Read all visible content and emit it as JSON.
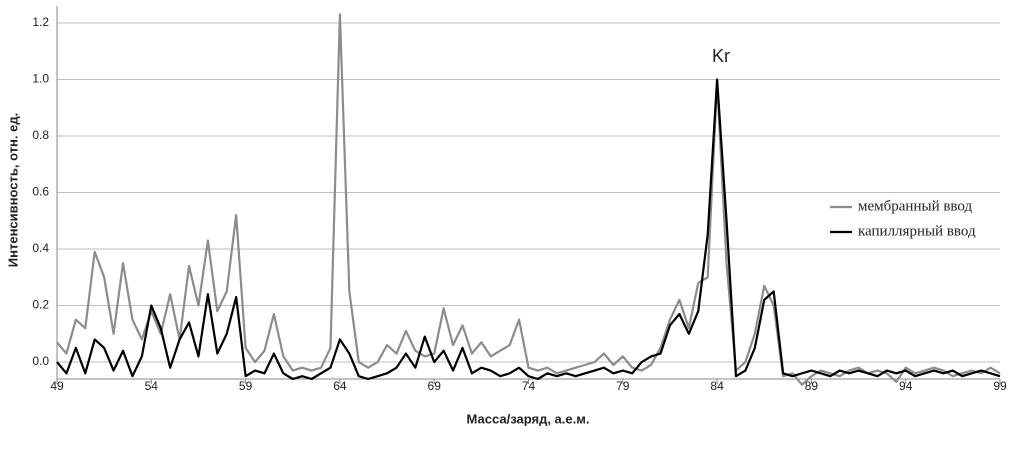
{
  "chart_data": {
    "type": "line",
    "xlabel": "Масса/заряд, а.е.м.",
    "ylabel": "Интенсивность, отн. ед.",
    "annotation": "Kr",
    "x": [
      49,
      49.5,
      50,
      50.5,
      51,
      51.5,
      52,
      52.5,
      53,
      53.5,
      54,
      54.5,
      55,
      55.5,
      56,
      56.5,
      57,
      57.5,
      58,
      58.5,
      59,
      59.5,
      60,
      60.5,
      61,
      61.5,
      62,
      62.5,
      63,
      63.5,
      64,
      64.5,
      65,
      65.5,
      66,
      66.5,
      67,
      67.5,
      68,
      68.5,
      69,
      69.5,
      70,
      70.5,
      71,
      71.5,
      72,
      72.5,
      73,
      73.5,
      74,
      74.5,
      75,
      75.5,
      76,
      76.5,
      77,
      77.5,
      78,
      78.5,
      79,
      79.5,
      80,
      80.5,
      81,
      81.5,
      82,
      82.5,
      83,
      83.5,
      84,
      84.5,
      85,
      85.5,
      86,
      86.5,
      87,
      87.5,
      88,
      88.5,
      89,
      89.5,
      90,
      90.5,
      91,
      91.5,
      92,
      92.5,
      93,
      93.5,
      94,
      94.5,
      95,
      95.5,
      96,
      96.5,
      97,
      97.5,
      98,
      98.5,
      99
    ],
    "series": [
      {
        "name": "мембранный ввод",
        "color": "#8c8c8c",
        "values": [
          0.07,
          0.03,
          0.15,
          0.12,
          0.39,
          0.3,
          0.1,
          0.35,
          0.15,
          0.08,
          0.18,
          0.1,
          0.24,
          0.08,
          0.34,
          0.2,
          0.43,
          0.18,
          0.25,
          0.52,
          0.05,
          0.0,
          0.04,
          0.17,
          0.02,
          -0.03,
          -0.02,
          -0.03,
          -0.02,
          0.05,
          1.23,
          0.25,
          0.0,
          -0.02,
          0.0,
          0.06,
          0.03,
          0.11,
          0.04,
          0.02,
          0.03,
          0.19,
          0.06,
          0.13,
          0.03,
          0.07,
          0.02,
          0.04,
          0.06,
          0.15,
          -0.02,
          -0.03,
          -0.02,
          -0.04,
          -0.03,
          -0.02,
          -0.01,
          0.0,
          0.03,
          -0.01,
          0.02,
          -0.02,
          -0.03,
          -0.01,
          0.05,
          0.15,
          0.22,
          0.12,
          0.28,
          0.3,
          0.99,
          0.35,
          -0.03,
          0.0,
          0.1,
          0.27,
          0.2,
          -0.05,
          -0.04,
          -0.08,
          -0.05,
          -0.03,
          -0.04,
          -0.05,
          -0.03,
          -0.02,
          -0.04,
          -0.03,
          -0.04,
          -0.07,
          -0.02,
          -0.04,
          -0.03,
          -0.02,
          -0.03,
          -0.05,
          -0.04,
          -0.03,
          -0.04,
          -0.02,
          -0.04
        ]
      },
      {
        "name": "капиллярный ввод",
        "color": "#000000",
        "values": [
          0.0,
          -0.04,
          0.05,
          -0.04,
          0.08,
          0.05,
          -0.03,
          0.04,
          -0.05,
          0.02,
          0.2,
          0.12,
          -0.02,
          0.08,
          0.14,
          0.02,
          0.24,
          0.03,
          0.1,
          0.23,
          -0.05,
          -0.03,
          -0.04,
          0.03,
          -0.04,
          -0.06,
          -0.05,
          -0.06,
          -0.04,
          -0.02,
          0.08,
          0.03,
          -0.05,
          -0.06,
          -0.05,
          -0.04,
          -0.02,
          0.03,
          -0.02,
          0.09,
          0.0,
          0.04,
          -0.03,
          0.05,
          -0.04,
          -0.02,
          -0.03,
          -0.05,
          -0.04,
          -0.02,
          -0.05,
          -0.06,
          -0.04,
          -0.05,
          -0.04,
          -0.05,
          -0.04,
          -0.03,
          -0.02,
          -0.04,
          -0.03,
          -0.04,
          0.0,
          0.02,
          0.03,
          0.13,
          0.17,
          0.1,
          0.18,
          0.45,
          1.0,
          0.5,
          -0.05,
          -0.03,
          0.05,
          0.22,
          0.25,
          -0.04,
          -0.05,
          -0.04,
          -0.03,
          -0.04,
          -0.05,
          -0.03,
          -0.04,
          -0.03,
          -0.04,
          -0.05,
          -0.03,
          -0.04,
          -0.03,
          -0.05,
          -0.04,
          -0.03,
          -0.04,
          -0.03,
          -0.05,
          -0.04,
          -0.03,
          -0.04,
          -0.05
        ]
      }
    ],
    "xlim": [
      49,
      99
    ],
    "xticks": [
      49,
      54,
      59,
      64,
      69,
      74,
      79,
      84,
      89,
      94,
      99
    ],
    "ylim": [
      -0.06,
      1.26
    ],
    "yticks": [
      {
        "value": 0,
        "label": "0.0"
      },
      0.2,
      0.4,
      0.6,
      0.8,
      {
        "value": 1,
        "label": "1.0"
      },
      1.2
    ],
    "grid": true,
    "legend": "right"
  }
}
